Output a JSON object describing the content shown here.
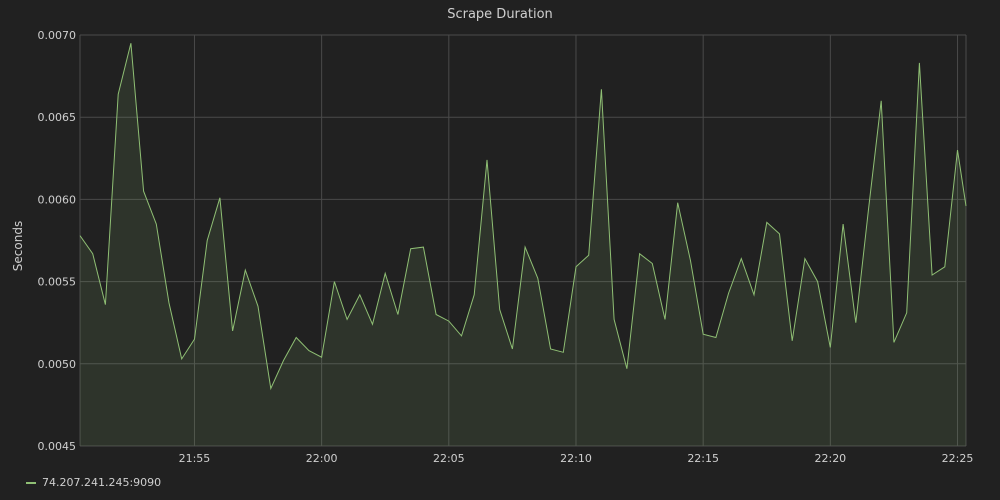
{
  "chart_data": {
    "type": "area",
    "title": "Scrape Duration",
    "xlabel": "",
    "ylabel": "Seconds",
    "ylim": [
      0.0045,
      0.007
    ],
    "yticks": [
      "0.0045",
      "0.0050",
      "0.0055",
      "0.0060",
      "0.0065",
      "0.0070"
    ],
    "xlim": [
      "21:50:30",
      "22:25:20"
    ],
    "xticks": [
      "21:55",
      "22:00",
      "22:05",
      "22:10",
      "22:15",
      "22:20",
      "22:25"
    ],
    "grid": true,
    "legend_position": "bottom-left",
    "series": [
      {
        "name": "74.207.241.245:9090",
        "color": "#8fbf74",
        "x": [
          "21:50:30",
          "21:51:00",
          "21:51:30",
          "21:52:00",
          "21:52:30",
          "21:53:00",
          "21:53:30",
          "21:54:00",
          "21:54:30",
          "21:55:00",
          "21:55:30",
          "21:56:00",
          "21:56:30",
          "21:57:00",
          "21:57:30",
          "21:58:00",
          "21:58:30",
          "21:59:00",
          "21:59:30",
          "22:00:00",
          "22:00:30",
          "22:01:00",
          "22:01:30",
          "22:02:00",
          "22:02:30",
          "22:03:00",
          "22:03:30",
          "22:04:00",
          "22:04:30",
          "22:05:00",
          "22:05:30",
          "22:06:00",
          "22:06:30",
          "22:07:00",
          "22:07:30",
          "22:08:00",
          "22:08:30",
          "22:09:00",
          "22:09:30",
          "22:10:00",
          "22:10:30",
          "22:11:00",
          "22:11:30",
          "22:12:00",
          "22:12:30",
          "22:13:00",
          "22:13:30",
          "22:14:00",
          "22:14:30",
          "22:15:00",
          "22:15:30",
          "22:16:00",
          "22:16:30",
          "22:17:00",
          "22:17:30",
          "22:18:00",
          "22:18:30",
          "22:19:00",
          "22:19:30",
          "22:20:00",
          "22:20:30",
          "22:21:00",
          "22:21:30",
          "22:22:00",
          "22:22:30",
          "22:23:00",
          "22:23:30",
          "22:24:00",
          "22:24:30",
          "22:25:00",
          "22:25:20"
        ],
        "values": [
          0.00578,
          0.00567,
          0.00536,
          0.00664,
          0.00695,
          0.00605,
          0.00585,
          0.00537,
          0.00503,
          0.00515,
          0.00575,
          0.00601,
          0.0052,
          0.00557,
          0.00535,
          0.00485,
          0.00502,
          0.00516,
          0.00508,
          0.00504,
          0.0055,
          0.00527,
          0.00542,
          0.00524,
          0.00555,
          0.0053,
          0.0057,
          0.00571,
          0.0053,
          0.00526,
          0.00517,
          0.00542,
          0.00624,
          0.00533,
          0.00509,
          0.00571,
          0.00552,
          0.00509,
          0.00507,
          0.00559,
          0.00566,
          0.00667,
          0.00527,
          0.00497,
          0.00567,
          0.00561,
          0.00527,
          0.00598,
          0.00563,
          0.00518,
          0.00516,
          0.00543,
          0.00564,
          0.00542,
          0.00586,
          0.00579,
          0.00514,
          0.00564,
          0.0055,
          0.0051,
          0.00585,
          0.00525,
          0.00594,
          0.0066,
          0.00513,
          0.00531,
          0.00683,
          0.00554,
          0.00559,
          0.0063,
          0.00596
        ]
      }
    ]
  }
}
